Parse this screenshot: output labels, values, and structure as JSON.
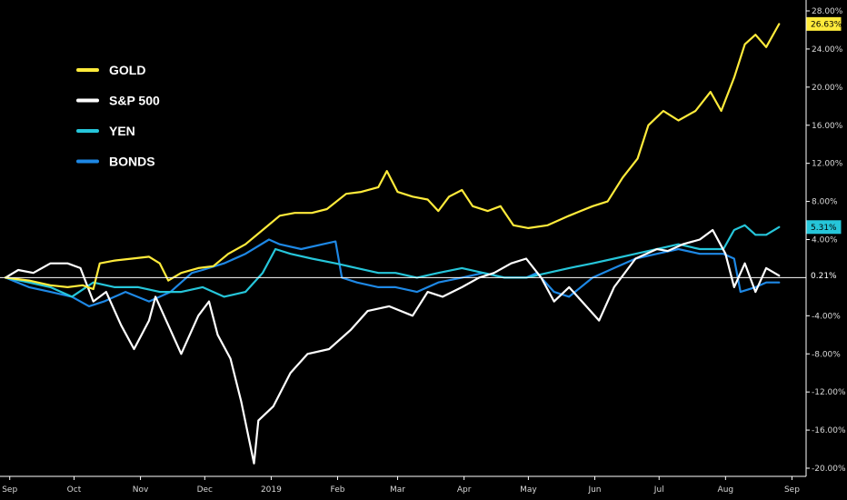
{
  "chart_data": {
    "type": "line",
    "title": "",
    "xlabel": "",
    "ylabel": "",
    "ylim": [
      -20,
      28
    ],
    "y_unit": "%",
    "y_ticks": [
      "28.00%",
      "24.00%",
      "20.00%",
      "16.00%",
      "12.00%",
      "8.00%",
      "4.00%",
      "-4.00%",
      "-8.00%",
      "-12.00%",
      "-16.00%",
      "-20.00%"
    ],
    "y_tick_values": [
      28,
      24,
      20,
      16,
      12,
      8,
      4,
      -4,
      -8,
      -12,
      -16,
      -20
    ],
    "x_range": [
      "2018-08-30",
      "2019-08-28"
    ],
    "x_ticks": [
      {
        "label": "Sep",
        "date": "2018-09-01"
      },
      {
        "label": "Oct",
        "date": "2018-10-01"
      },
      {
        "label": "Nov",
        "date": "2018-11-01"
      },
      {
        "label": "Dec",
        "date": "2018-12-01"
      },
      {
        "label": "2019",
        "date": "2019-01-01"
      },
      {
        "label": "Feb",
        "date": "2019-02-01"
      },
      {
        "label": "Mar",
        "date": "2019-03-01"
      },
      {
        "label": "Apr",
        "date": "2019-04-01"
      },
      {
        "label": "May",
        "date": "2019-05-01"
      },
      {
        "label": "Jun",
        "date": "2019-06-01"
      },
      {
        "label": "Jul",
        "date": "2019-07-01"
      },
      {
        "label": "Aug",
        "date": "2019-08-01"
      },
      {
        "label": "Sep",
        "date": "2019-09-01"
      }
    ],
    "zero_line": true,
    "grid": false,
    "legend_position": "top-left",
    "series": [
      {
        "name": "GOLD",
        "color": "#ffeb3b",
        "last_label": "26.63%",
        "points": [
          [
            "2018-08-30",
            0.0
          ],
          [
            "2018-09-10",
            -0.3
          ],
          [
            "2018-09-20",
            -0.8
          ],
          [
            "2018-09-28",
            -1.0
          ],
          [
            "2018-10-05",
            -0.8
          ],
          [
            "2018-10-10",
            -1.2
          ],
          [
            "2018-10-13",
            1.5
          ],
          [
            "2018-10-20",
            1.8
          ],
          [
            "2018-10-28",
            2.0
          ],
          [
            "2018-11-05",
            2.2
          ],
          [
            "2018-11-10",
            1.5
          ],
          [
            "2018-11-14",
            -0.3
          ],
          [
            "2018-11-20",
            0.5
          ],
          [
            "2018-11-28",
            1.0
          ],
          [
            "2018-12-05",
            1.2
          ],
          [
            "2018-12-12",
            2.5
          ],
          [
            "2018-12-20",
            3.5
          ],
          [
            "2018-12-28",
            5.0
          ],
          [
            "2019-01-05",
            6.5
          ],
          [
            "2019-01-12",
            6.8
          ],
          [
            "2019-01-20",
            6.8
          ],
          [
            "2019-01-27",
            7.2
          ],
          [
            "2019-02-05",
            8.8
          ],
          [
            "2019-02-12",
            9.0
          ],
          [
            "2019-02-20",
            9.5
          ],
          [
            "2019-02-24",
            11.2
          ],
          [
            "2019-03-01",
            9.0
          ],
          [
            "2019-03-08",
            8.5
          ],
          [
            "2019-03-15",
            8.2
          ],
          [
            "2019-03-20",
            7.0
          ],
          [
            "2019-03-25",
            8.5
          ],
          [
            "2019-03-31",
            9.2
          ],
          [
            "2019-04-05",
            7.5
          ],
          [
            "2019-04-12",
            7.0
          ],
          [
            "2019-04-18",
            7.5
          ],
          [
            "2019-04-24",
            5.5
          ],
          [
            "2019-05-01",
            5.2
          ],
          [
            "2019-05-10",
            5.5
          ],
          [
            "2019-05-20",
            6.5
          ],
          [
            "2019-05-31",
            7.5
          ],
          [
            "2019-06-07",
            8.0
          ],
          [
            "2019-06-14",
            10.5
          ],
          [
            "2019-06-21",
            12.5
          ],
          [
            "2019-06-26",
            16.0
          ],
          [
            "2019-07-03",
            17.5
          ],
          [
            "2019-07-10",
            16.5
          ],
          [
            "2019-07-18",
            17.5
          ],
          [
            "2019-07-25",
            19.5
          ],
          [
            "2019-07-30",
            17.5
          ],
          [
            "2019-08-05",
            21.0
          ],
          [
            "2019-08-10",
            24.5
          ],
          [
            "2019-08-15",
            25.5
          ],
          [
            "2019-08-20",
            24.2
          ],
          [
            "2019-08-26",
            26.63
          ]
        ]
      },
      {
        "name": "S&P 500",
        "color": "#ffffff",
        "last_label": "",
        "points": [
          [
            "2018-08-30",
            0.0
          ],
          [
            "2018-09-05",
            0.8
          ],
          [
            "2018-09-12",
            0.5
          ],
          [
            "2018-09-20",
            1.5
          ],
          [
            "2018-09-28",
            1.5
          ],
          [
            "2018-10-04",
            1.0
          ],
          [
            "2018-10-10",
            -2.5
          ],
          [
            "2018-10-16",
            -1.5
          ],
          [
            "2018-10-23",
            -5.0
          ],
          [
            "2018-10-29",
            -7.5
          ],
          [
            "2018-11-05",
            -4.5
          ],
          [
            "2018-11-08",
            -2.0
          ],
          [
            "2018-11-15",
            -5.5
          ],
          [
            "2018-11-20",
            -8.0
          ],
          [
            "2018-11-28",
            -4.0
          ],
          [
            "2018-12-03",
            -2.5
          ],
          [
            "2018-12-07",
            -6.0
          ],
          [
            "2018-12-13",
            -8.5
          ],
          [
            "2018-12-18",
            -13.0
          ],
          [
            "2018-12-24",
            -19.5
          ],
          [
            "2018-12-26",
            -15.0
          ],
          [
            "2019-01-02",
            -13.5
          ],
          [
            "2019-01-10",
            -10.0
          ],
          [
            "2019-01-18",
            -8.0
          ],
          [
            "2019-01-28",
            -7.5
          ],
          [
            "2019-02-07",
            -5.5
          ],
          [
            "2019-02-15",
            -3.5
          ],
          [
            "2019-02-25",
            -3.0
          ],
          [
            "2019-03-08",
            -4.0
          ],
          [
            "2019-03-15",
            -1.5
          ],
          [
            "2019-03-22",
            -2.0
          ],
          [
            "2019-03-31",
            -1.0
          ],
          [
            "2019-04-08",
            0.0
          ],
          [
            "2019-04-15",
            0.5
          ],
          [
            "2019-04-23",
            1.5
          ],
          [
            "2019-04-30",
            2.0
          ],
          [
            "2019-05-07",
            0.0
          ],
          [
            "2019-05-13",
            -2.5
          ],
          [
            "2019-05-20",
            -1.0
          ],
          [
            "2019-05-28",
            -3.0
          ],
          [
            "2019-06-03",
            -4.5
          ],
          [
            "2019-06-10",
            -1.0
          ],
          [
            "2019-06-20",
            2.0
          ],
          [
            "2019-06-30",
            3.0
          ],
          [
            "2019-07-05",
            2.8
          ],
          [
            "2019-07-12",
            3.5
          ],
          [
            "2019-07-20",
            4.0
          ],
          [
            "2019-07-26",
            5.0
          ],
          [
            "2019-08-01",
            2.5
          ],
          [
            "2019-08-05",
            -1.0
          ],
          [
            "2019-08-10",
            1.5
          ],
          [
            "2019-08-15",
            -1.5
          ],
          [
            "2019-08-20",
            1.0
          ],
          [
            "2019-08-26",
            0.21
          ]
        ]
      },
      {
        "name": "YEN",
        "color": "#26c6da",
        "last_label": "5.31%",
        "points": [
          [
            "2018-08-30",
            0.0
          ],
          [
            "2018-09-10",
            -0.5
          ],
          [
            "2018-09-20",
            -1.0
          ],
          [
            "2018-09-30",
            -2.0
          ],
          [
            "2018-10-10",
            -0.5
          ],
          [
            "2018-10-20",
            -1.0
          ],
          [
            "2018-10-31",
            -1.0
          ],
          [
            "2018-11-10",
            -1.5
          ],
          [
            "2018-11-20",
            -1.5
          ],
          [
            "2018-11-30",
            -1.0
          ],
          [
            "2018-12-10",
            -2.0
          ],
          [
            "2018-12-20",
            -1.5
          ],
          [
            "2018-12-28",
            0.5
          ],
          [
            "2019-01-03",
            3.0
          ],
          [
            "2019-01-10",
            2.5
          ],
          [
            "2019-01-20",
            2.0
          ],
          [
            "2019-01-31",
            1.5
          ],
          [
            "2019-02-10",
            1.0
          ],
          [
            "2019-02-20",
            0.5
          ],
          [
            "2019-02-28",
            0.5
          ],
          [
            "2019-03-10",
            0.0
          ],
          [
            "2019-03-20",
            0.5
          ],
          [
            "2019-03-31",
            1.0
          ],
          [
            "2019-04-10",
            0.5
          ],
          [
            "2019-04-20",
            0.0
          ],
          [
            "2019-04-30",
            0.0
          ],
          [
            "2019-05-10",
            0.5
          ],
          [
            "2019-05-20",
            1.0
          ],
          [
            "2019-05-31",
            1.5
          ],
          [
            "2019-06-10",
            2.0
          ],
          [
            "2019-06-20",
            2.5
          ],
          [
            "2019-06-30",
            3.0
          ],
          [
            "2019-07-10",
            3.5
          ],
          [
            "2019-07-20",
            3.0
          ],
          [
            "2019-07-31",
            3.0
          ],
          [
            "2019-08-05",
            5.0
          ],
          [
            "2019-08-10",
            5.5
          ],
          [
            "2019-08-15",
            4.5
          ],
          [
            "2019-08-20",
            4.5
          ],
          [
            "2019-08-26",
            5.31
          ]
        ]
      },
      {
        "name": "BONDS",
        "color": "#1e88e5",
        "last_label": "",
        "points": [
          [
            "2018-08-30",
            0.0
          ],
          [
            "2018-09-10",
            -1.0
          ],
          [
            "2018-09-20",
            -1.5
          ],
          [
            "2018-09-30",
            -2.0
          ],
          [
            "2018-10-08",
            -3.0
          ],
          [
            "2018-10-15",
            -2.5
          ],
          [
            "2018-10-25",
            -1.5
          ],
          [
            "2018-11-05",
            -2.5
          ],
          [
            "2018-11-15",
            -1.5
          ],
          [
            "2018-11-25",
            0.5
          ],
          [
            "2018-11-30",
            0.8
          ],
          [
            "2018-12-10",
            1.5
          ],
          [
            "2018-12-20",
            2.5
          ],
          [
            "2018-12-31",
            4.0
          ],
          [
            "2019-01-05",
            3.5
          ],
          [
            "2019-01-15",
            3.0
          ],
          [
            "2019-01-25",
            3.5
          ],
          [
            "2019-01-31",
            3.8
          ],
          [
            "2019-02-03",
            0.0
          ],
          [
            "2019-02-10",
            -0.5
          ],
          [
            "2019-02-20",
            -1.0
          ],
          [
            "2019-02-28",
            -1.0
          ],
          [
            "2019-03-10",
            -1.5
          ],
          [
            "2019-03-20",
            -0.5
          ],
          [
            "2019-03-31",
            0.0
          ],
          [
            "2019-04-10",
            0.5
          ],
          [
            "2019-04-20",
            0.0
          ],
          [
            "2019-04-30",
            0.0
          ],
          [
            "2019-05-05",
            0.5
          ],
          [
            "2019-05-13",
            -1.5
          ],
          [
            "2019-05-20",
            -2.0
          ],
          [
            "2019-05-31",
            0.0
          ],
          [
            "2019-06-10",
            1.0
          ],
          [
            "2019-06-20",
            2.0
          ],
          [
            "2019-06-30",
            2.5
          ],
          [
            "2019-07-10",
            3.0
          ],
          [
            "2019-07-20",
            2.5
          ],
          [
            "2019-07-31",
            2.5
          ],
          [
            "2019-08-05",
            2.0
          ],
          [
            "2019-08-08",
            -1.5
          ],
          [
            "2019-08-15",
            -1.0
          ],
          [
            "2019-08-20",
            -0.5
          ],
          [
            "2019-08-26",
            -0.5
          ]
        ]
      }
    ],
    "value_badges": [
      {
        "label": "26.63%",
        "value": 26.63,
        "bg": "#ffeb3b",
        "fg": "#000000"
      },
      {
        "label": "5.31%",
        "value": 5.31,
        "bg": "#26c6da",
        "fg": "#000000"
      },
      {
        "label": "0.21%",
        "value": 0.21,
        "bg": "#000000",
        "fg": "#ffffff"
      }
    ]
  }
}
